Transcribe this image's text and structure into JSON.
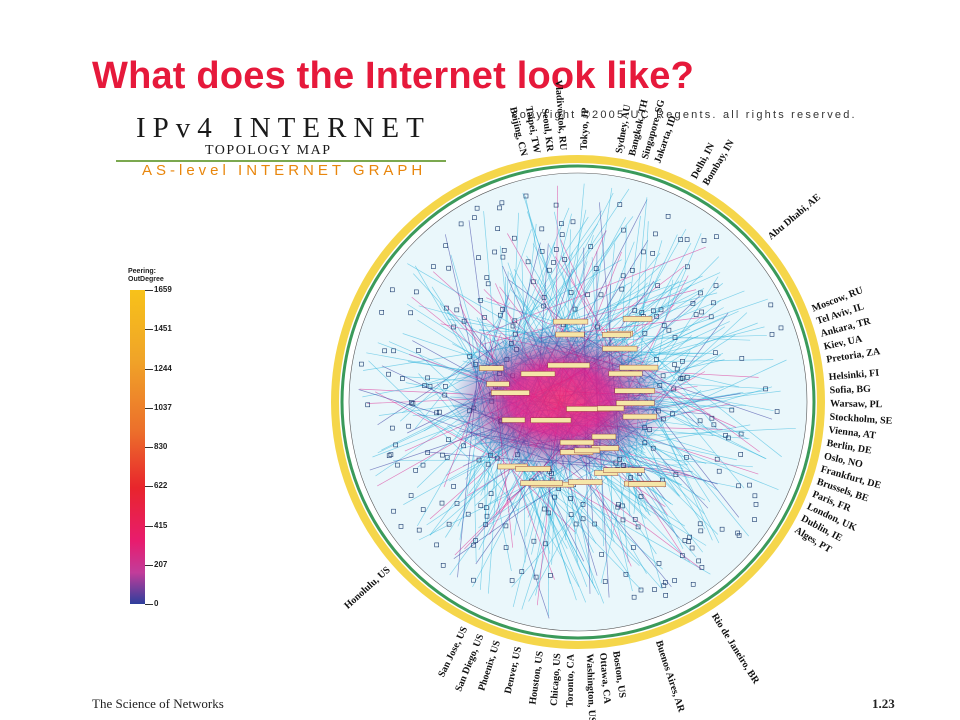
{
  "slide": {
    "title": "What does the Internet look like?",
    "footer_left": "The Science of Networks",
    "page_number": "1.23"
  },
  "map": {
    "copyright": "copyright ©2005 UC Regents. all rights reserved.",
    "title": "IPv4 INTERNET",
    "subtitle": "TOPOLOGY MAP",
    "tagline": "AS-level INTERNET GRAPH",
    "legend_title_1": "Peering:",
    "legend_title_2": "OutDegree",
    "legend_values": [
      "1659",
      "1451",
      "1244",
      "1037",
      "830",
      "622",
      "415",
      "207",
      "0"
    ],
    "colors": {
      "title_red": "#e6193b",
      "link_cyan": "#2bb5dc",
      "core_magenta": "#e81c84",
      "core_blue": "#2a2f9a",
      "ring_yellow": "#f5d64a"
    },
    "cities": [
      "Bangkok, TH",
      "Singapore, SG",
      "Jakarta, ID",
      "Delhi, IN",
      "Bombay, IN",
      "Abu Dhabi, AE",
      "Beijing, CN",
      "Taipei, TW",
      "Seoul, KR",
      "Vladivostok, RU",
      "Tokyo, JP",
      "Sydney, AU",
      "Moscow, RU",
      "Tel Aviv, IL",
      "Ankara, TR",
      "Kiev, UA",
      "Pretoria, ZA",
      "Helsinki, FI",
      "Sofia, BG",
      "Warsaw, PL",
      "Stockholm, SE",
      "Vienna, AT",
      "Berlin, DE",
      "Oslo, NO",
      "Frankfurt, DE",
      "Brussels, BE",
      "Paris, FR",
      "London, UK",
      "Dublin, IE",
      "Alges, PT",
      "Honolulu, US",
      "Rio de Janeiro, BR",
      "Buenos Aires, AR",
      "Boston, US",
      "Ottawa, CA",
      "Washington, US",
      "Toronto, CA",
      "Chicago, US",
      "Houston, US",
      "Denver, US",
      "Phoenix, US",
      "San Diego, US",
      "San Jose, US"
    ]
  }
}
